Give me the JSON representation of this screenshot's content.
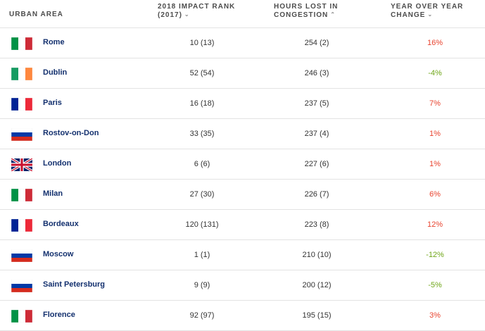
{
  "headers": {
    "urban_area": "URBAN AREA",
    "impact_rank": [
      "2018 IMPACT RANK",
      "(2017)"
    ],
    "hours_lost": [
      "HOURS LOST IN",
      "CONGESTION"
    ],
    "yoy_change": [
      "YEAR OVER YEAR",
      "CHANGE"
    ],
    "sort_desc_glyph": "⌄",
    "sort_asc_glyph": "⌃"
  },
  "colors": {
    "city_text": "#13306e",
    "positive_change": "#e8432e",
    "negative_change": "#6fa619",
    "header_text": "#4c4c4c",
    "row_divider": "#e3e3e3"
  },
  "rows": [
    {
      "flag": "italy-flag-icon",
      "city": "Rome",
      "rank": "10 (13)",
      "hours": "254 (2)",
      "change": "16%",
      "direction": "pos"
    },
    {
      "flag": "ireland-flag-icon",
      "city": "Dublin",
      "rank": "52 (54)",
      "hours": "246 (3)",
      "change": "-4%",
      "direction": "neg"
    },
    {
      "flag": "france-flag-icon",
      "city": "Paris",
      "rank": "16 (18)",
      "hours": "237 (5)",
      "change": "7%",
      "direction": "pos"
    },
    {
      "flag": "russia-flag-icon",
      "city": "Rostov-on-Don",
      "rank": "33 (35)",
      "hours": "237 (4)",
      "change": "1%",
      "direction": "pos"
    },
    {
      "flag": "uk-flag-icon",
      "city": "London",
      "rank": "6 (6)",
      "hours": "227 (6)",
      "change": "1%",
      "direction": "pos"
    },
    {
      "flag": "italy-flag-icon",
      "city": "Milan",
      "rank": "27 (30)",
      "hours": "226 (7)",
      "change": "6%",
      "direction": "pos"
    },
    {
      "flag": "france-flag-icon",
      "city": "Bordeaux",
      "rank": "120 (131)",
      "hours": "223 (8)",
      "change": "12%",
      "direction": "pos"
    },
    {
      "flag": "russia-flag-icon",
      "city": "Moscow",
      "rank": "1 (1)",
      "hours": "210 (10)",
      "change": "-12%",
      "direction": "neg"
    },
    {
      "flag": "russia-flag-icon",
      "city": "Saint Petersburg",
      "rank": "9 (9)",
      "hours": "200 (12)",
      "change": "-5%",
      "direction": "neg"
    },
    {
      "flag": "italy-flag-icon",
      "city": "Florence",
      "rank": "92 (97)",
      "hours": "195 (15)",
      "change": "3%",
      "direction": "pos"
    }
  ]
}
